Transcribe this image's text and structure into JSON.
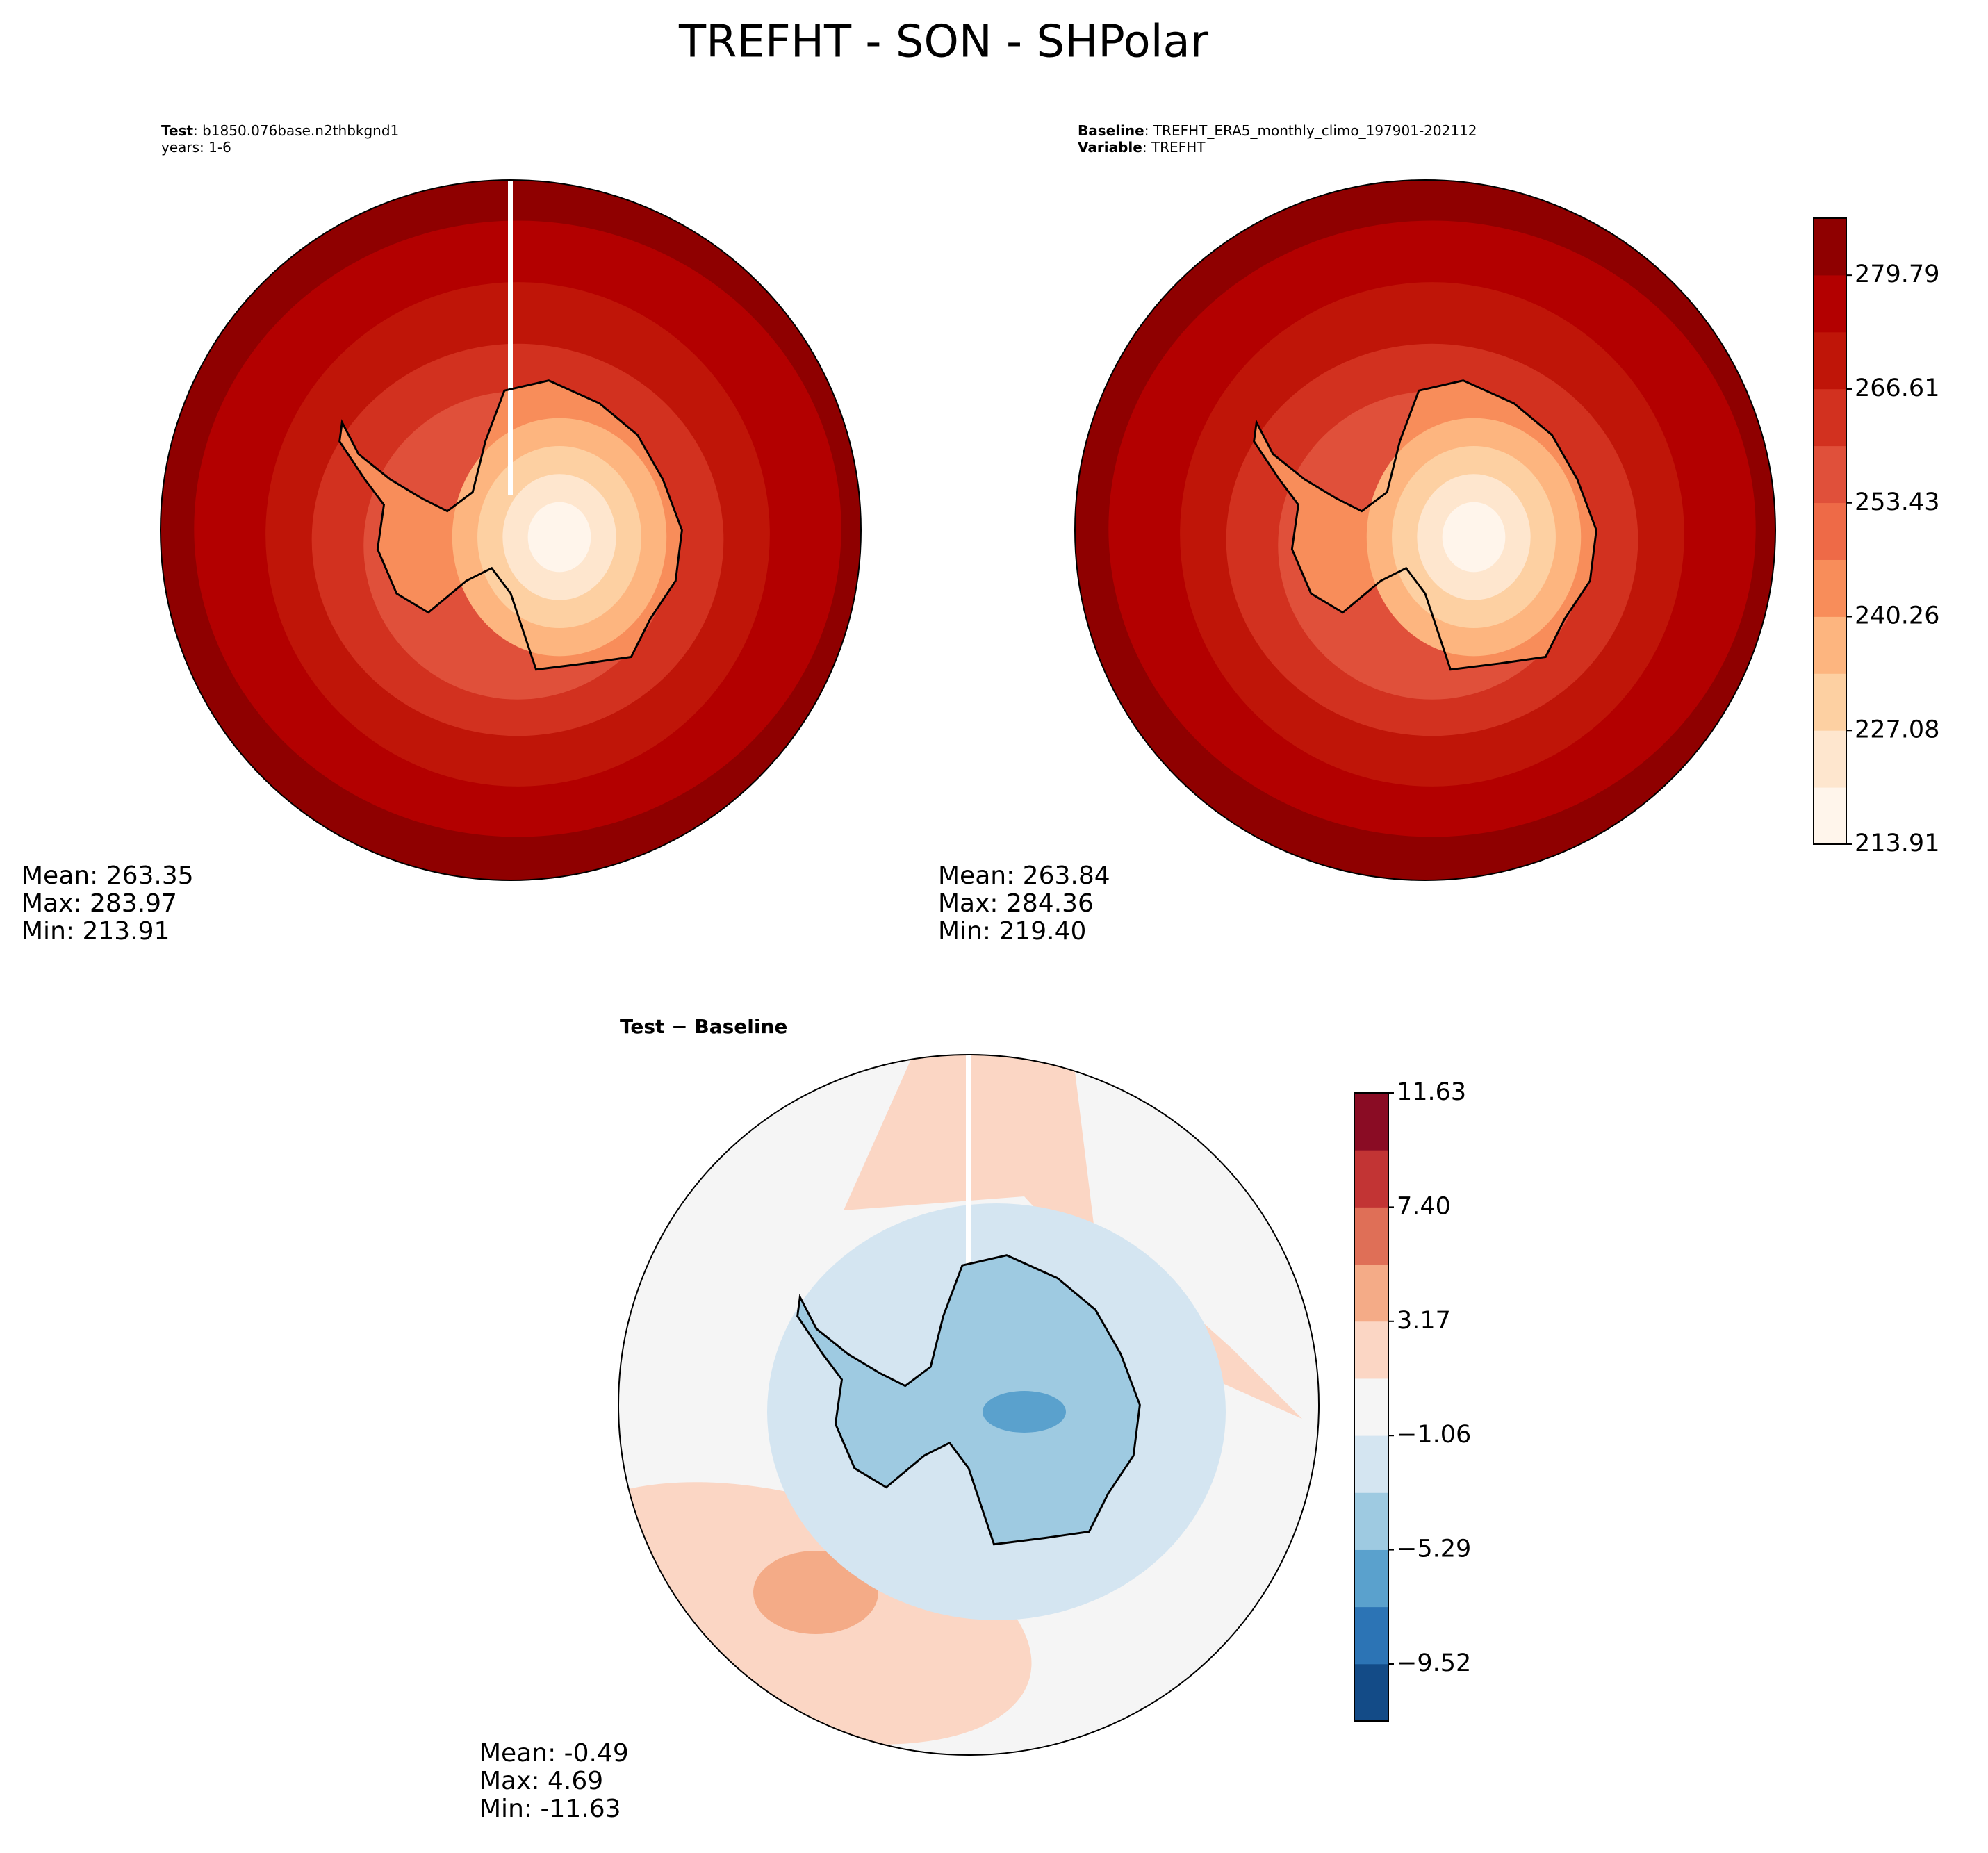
{
  "title": "TREFHT - SON - SHPolar",
  "panels": [
    {
      "header": [
        {
          "label": "Test",
          "text": ": b1850.076base.n2thbkgnd1"
        },
        {
          "text": "years: 1-6"
        }
      ],
      "stats": [
        "Mean: 263.35",
        "Max: 283.97",
        "Min: 213.91"
      ]
    },
    {
      "header": [
        {
          "label": "Baseline",
          "text": ": TREFHT_ERA5_monthly_climo_197901-202112"
        },
        {
          "label": "Variable",
          "text": ": TREFHT"
        }
      ],
      "stats": [
        "Mean: 263.84",
        "Max: 284.36",
        "Min: 219.40"
      ]
    },
    {
      "header": [
        {
          "label": "Test − Baseline"
        }
      ],
      "stats": [
        "Mean: -0.49",
        "Max:  4.69",
        "Min: -11.63"
      ]
    }
  ],
  "colorbars": [
    {
      "lim": [
        213.91,
        286.4
      ],
      "ticks": [
        213.91,
        227.08,
        240.26,
        253.43,
        266.61,
        279.79
      ],
      "colors": [
        "#fff5eb",
        "#fee6ce",
        "#fdd0a2",
        "#fdb57f",
        "#f88d5a",
        "#ee6a47",
        "#e0503a",
        "#d2311f",
        "#bf1508",
        "#b30000",
        "#8f0000"
      ]
    },
    {
      "lim": [
        -11.63,
        11.63
      ],
      "ticks": [
        {
          "value": -9.52,
          "label": "−9.52"
        },
        {
          "value": -5.29,
          "label": "−5.29"
        },
        {
          "value": -1.06,
          "label": "−1.06"
        },
        3.17,
        {
          "value": 7.4,
          "label": "7.40"
        },
        11.63
      ],
      "colors": [
        "#134b87",
        "#2c74b5",
        "#5aa1cd",
        "#9ecae1",
        "#d4e5f1",
        "#f5f5f5",
        "#fbd6c4",
        "#f4ab87",
        "#df6f57",
        "#c23434",
        "#8a0c24"
      ]
    }
  ]
}
